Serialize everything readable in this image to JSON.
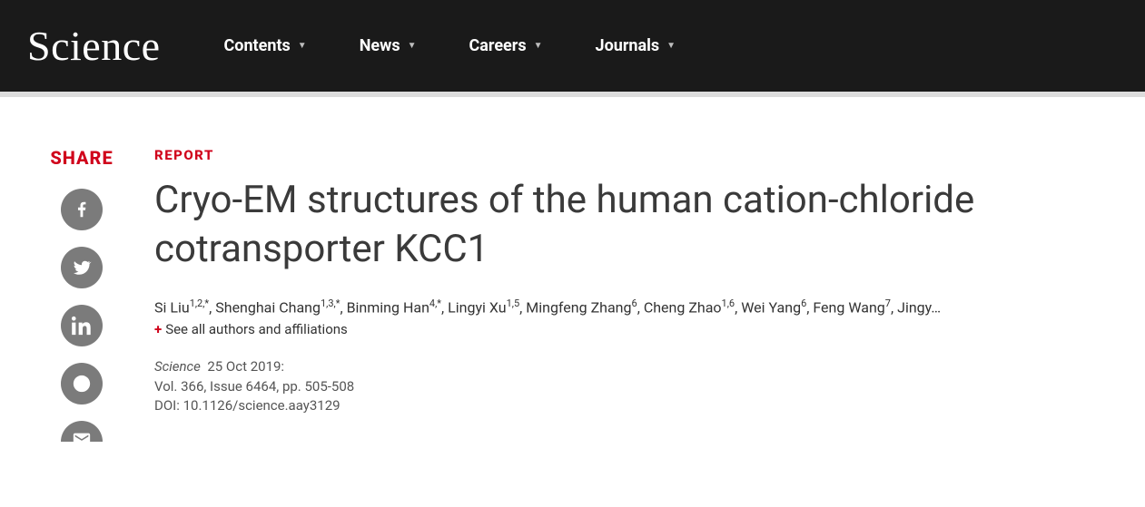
{
  "header": {
    "logo": "Science",
    "nav": [
      {
        "label": "Contents"
      },
      {
        "label": "News"
      },
      {
        "label": "Careers"
      },
      {
        "label": "Journals"
      }
    ]
  },
  "share": {
    "heading": "SHARE",
    "buttons": [
      {
        "name": "facebook"
      },
      {
        "name": "twitter"
      },
      {
        "name": "linkedin"
      },
      {
        "name": "reddit"
      },
      {
        "name": "email"
      }
    ]
  },
  "article": {
    "category": "REPORT",
    "title": "Cryo-EM structures of the human cation-chloride cotransporter KCC1",
    "authors": [
      {
        "name": "Si Liu",
        "aff": "1,2,*"
      },
      {
        "name": "Shenghai Chang",
        "aff": "1,3,*"
      },
      {
        "name": "Binming Han",
        "aff": "4,*"
      },
      {
        "name": "Lingyi Xu",
        "aff": "1,5"
      },
      {
        "name": "Mingfeng Zhang",
        "aff": "6"
      },
      {
        "name": "Cheng Zhao",
        "aff": "1,6"
      },
      {
        "name": "Wei Yang",
        "aff": "6"
      },
      {
        "name": "Feng Wang",
        "aff": "7"
      },
      {
        "name": "Jingy…",
        "aff": ""
      }
    ],
    "expand_label": "See all authors and affiliations",
    "pub": {
      "journal": "Science",
      "date": "25 Oct 2019:",
      "volume_line": "Vol. 366, Issue 6464, pp. 505-508",
      "doi_line": "DOI: 10.1126/science.aay3129"
    }
  },
  "colors": {
    "topbar_bg": "#1a1a1a",
    "accent_red": "#d0021b",
    "share_icon_bg": "#7b7b7b",
    "text_primary": "#3a3a3a",
    "text_muted": "#555555",
    "divider": "#dcdcdc"
  }
}
